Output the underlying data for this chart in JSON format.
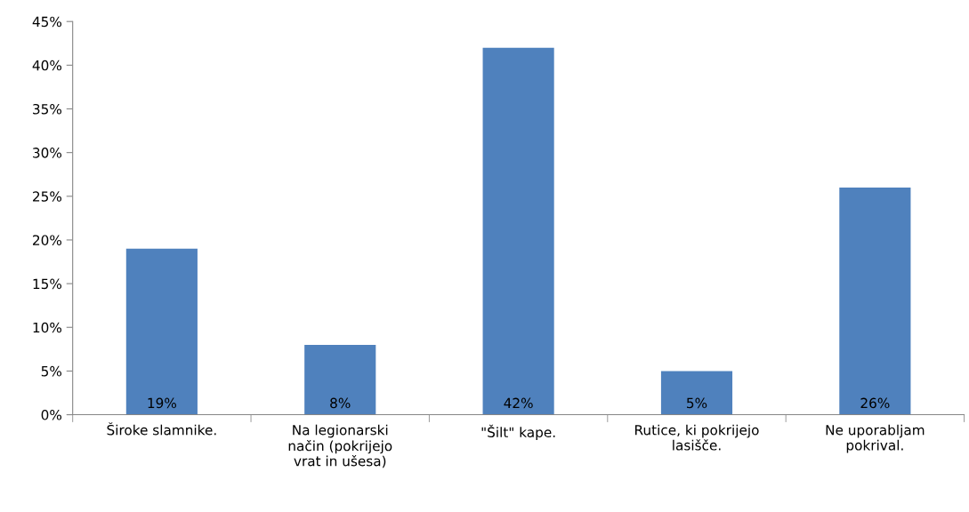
{
  "chart_data": {
    "type": "bar",
    "categories": [
      "Široke slamnike.",
      "Na legionarski\nnačin (pokrijejo\nvrat in ušesa)",
      "\"Šilt\" kape.",
      "Rutice, ki pokrijejo\nlasišče.",
      "Ne uporabljam\npokrival."
    ],
    "values": [
      19,
      8,
      42,
      5,
      26
    ],
    "value_labels": [
      "19%",
      "8%",
      "42%",
      "5%",
      "26%"
    ],
    "color": "#4f81bd",
    "ylim": [
      0,
      45
    ],
    "yticks": [
      {
        "value": 0,
        "label": "0%"
      },
      {
        "value": 5,
        "label": "5%"
      },
      {
        "value": 10,
        "label": "10%"
      },
      {
        "value": 15,
        "label": "15%"
      },
      {
        "value": 20,
        "label": "20%"
      },
      {
        "value": 25,
        "label": "25%"
      },
      {
        "value": 30,
        "label": "30%"
      },
      {
        "value": 35,
        "label": "35%"
      },
      {
        "value": 40,
        "label": "40%"
      },
      {
        "value": 45,
        "label": "45%"
      }
    ],
    "grid": false,
    "legend": false
  }
}
